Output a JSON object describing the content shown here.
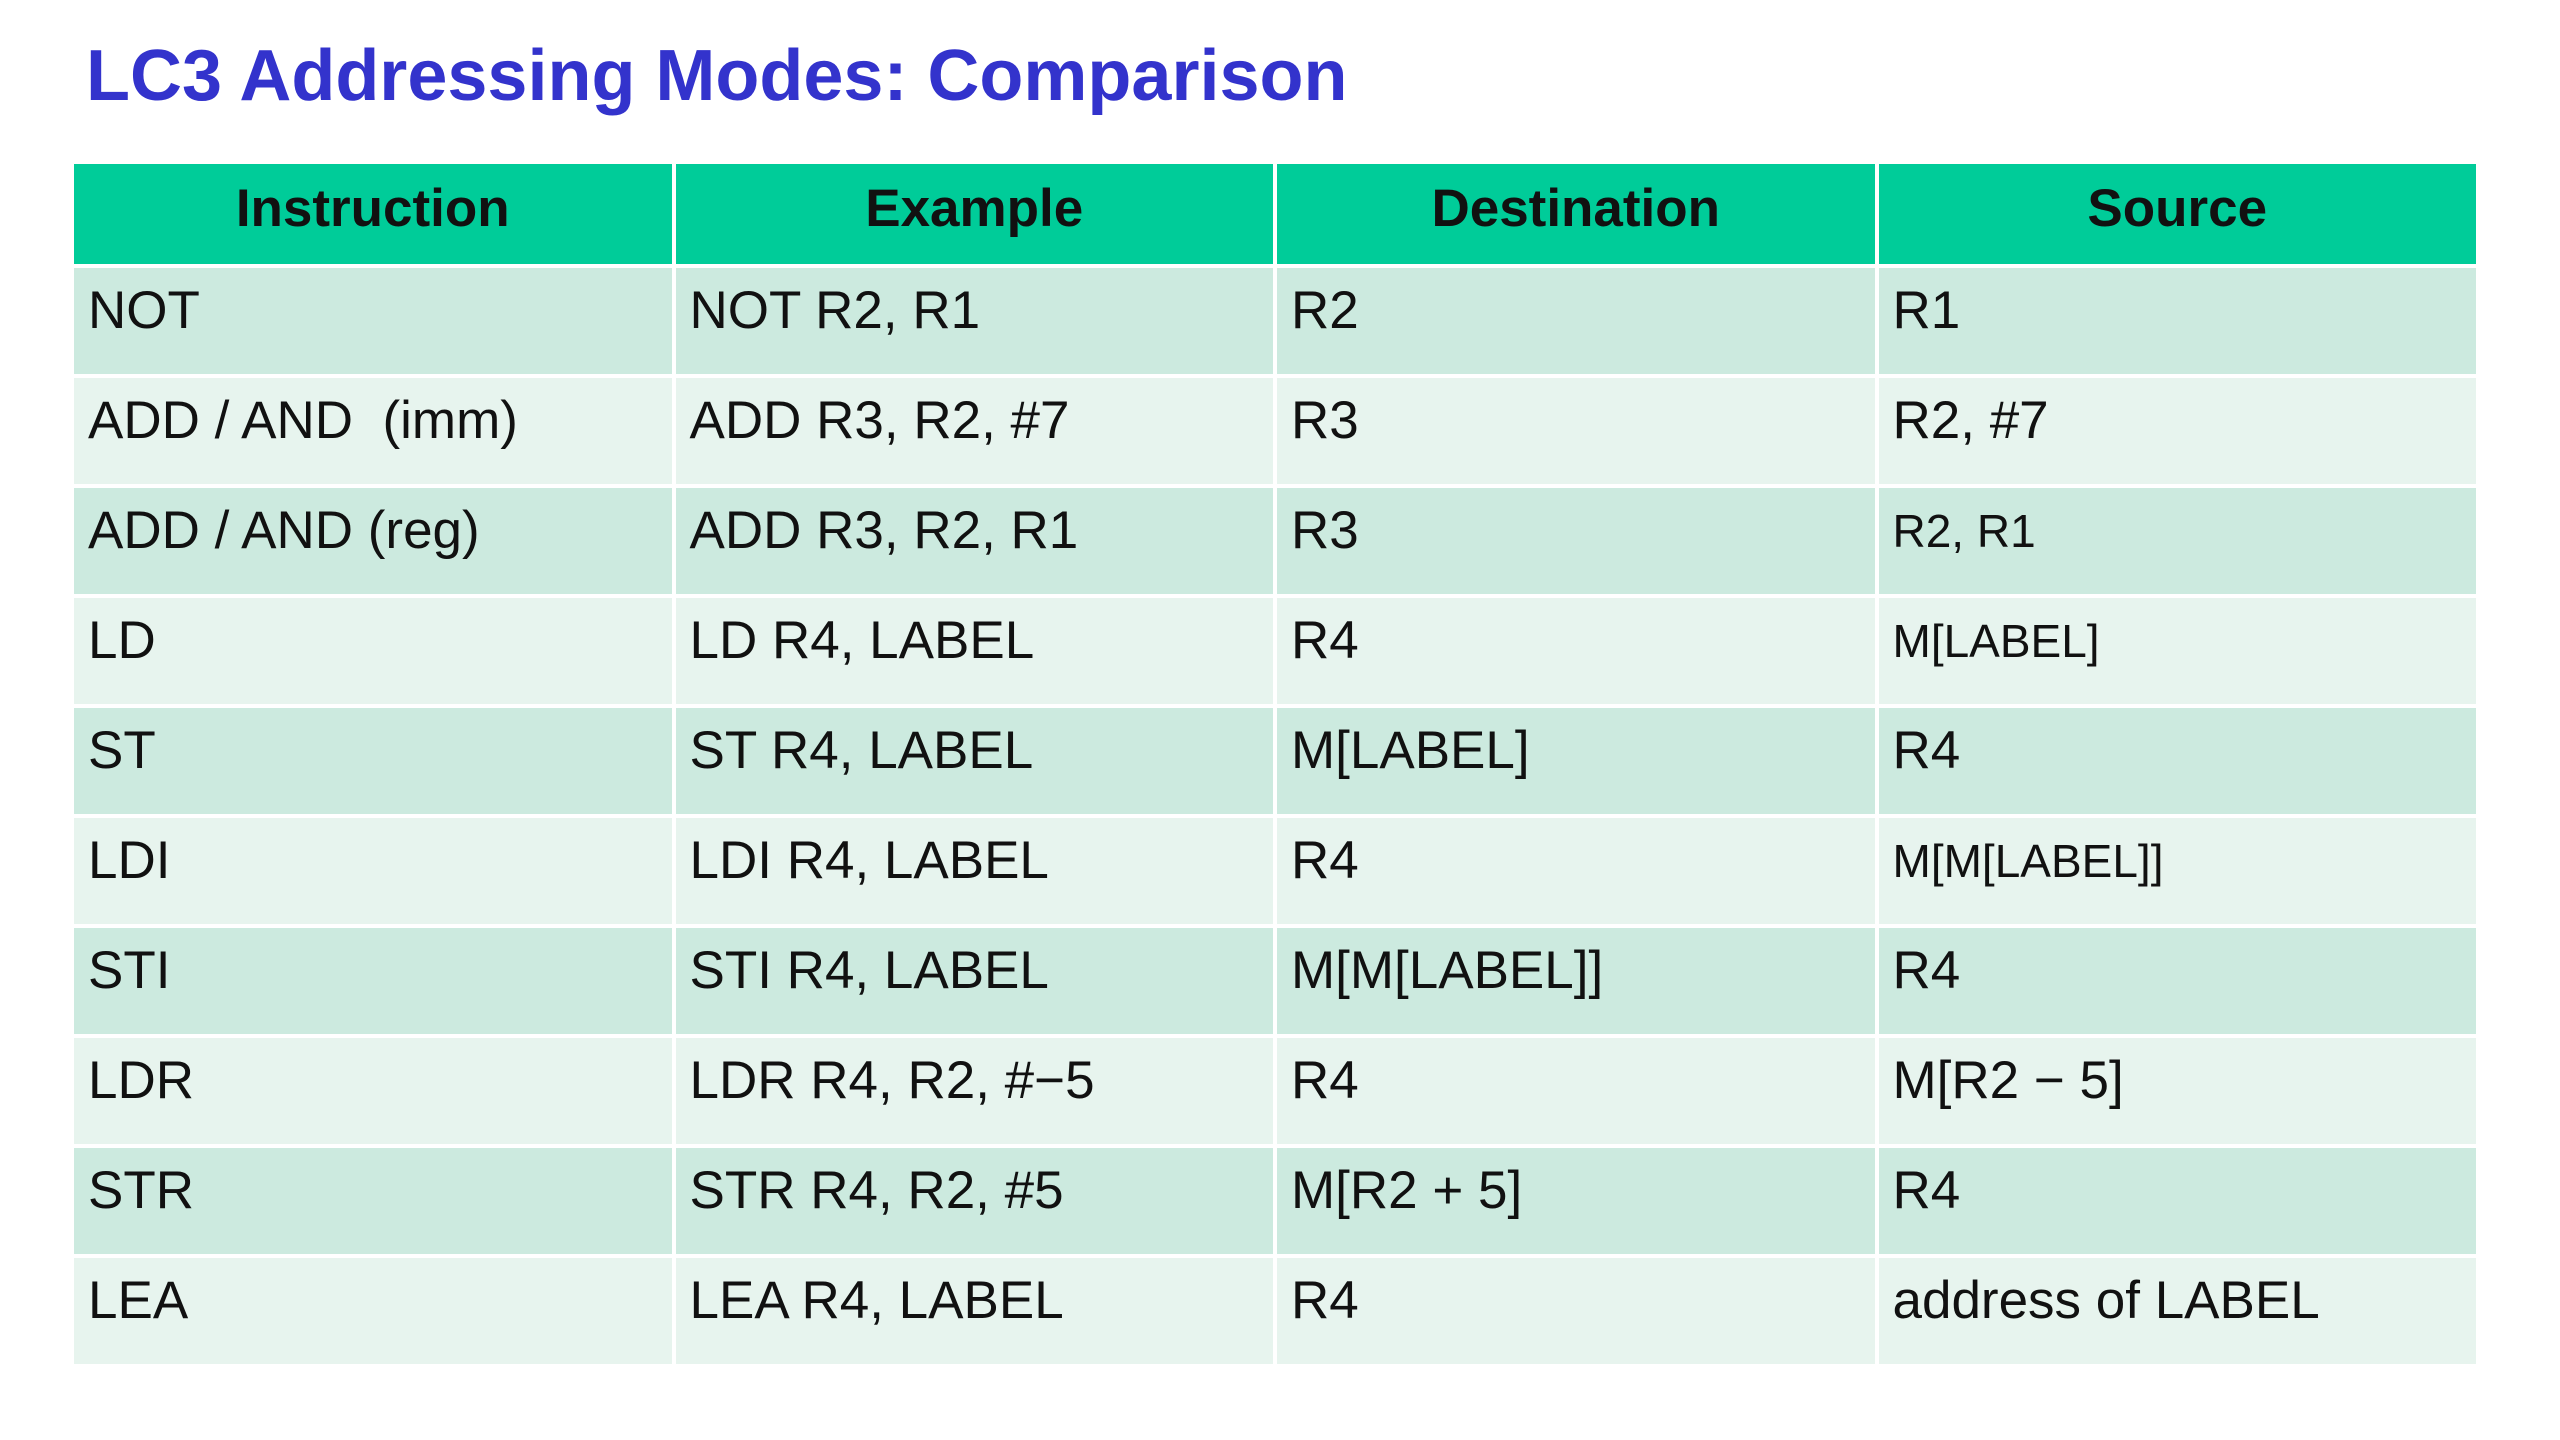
{
  "slide": {
    "title": "LC3 Addressing Modes: Comparison"
  },
  "table": {
    "headers": [
      "Instruction",
      "Example",
      "Destination",
      "Source"
    ],
    "rows": [
      [
        "NOT",
        "NOT R2, R1",
        "R2",
        "R1"
      ],
      [
        "ADD / AND  (imm)",
        "ADD R3, R2, #7",
        "R3",
        "R2, #7"
      ],
      [
        "ADD / AND (reg)",
        "ADD R3, R2, R1",
        "R3",
        "R2, R1"
      ],
      [
        "LD",
        "LD R4, LABEL",
        "R4",
        "M[LABEL]"
      ],
      [
        "ST",
        "ST R4, LABEL",
        "M[LABEL]",
        "R4"
      ],
      [
        "LDI",
        "LDI R4, LABEL",
        "R4",
        "M[M[LABEL]]"
      ],
      [
        "STI",
        "STI R4, LABEL",
        "M[M[LABEL]]",
        "R4"
      ],
      [
        "LDR",
        "LDR R4, R2, #−5",
        "R4",
        "M[R2 − 5]"
      ],
      [
        "STR",
        "STR R4, R2, #5",
        "M[R2 + 5]",
        "R4"
      ],
      [
        "LEA",
        "LEA R4, LABEL",
        "R4",
        "address of LABEL"
      ]
    ]
  },
  "colors": {
    "title": "#3333cc",
    "header_bg": "#00cc99",
    "row_odd_bg": "#cceadf",
    "row_even_bg": "#e7f4ee"
  }
}
